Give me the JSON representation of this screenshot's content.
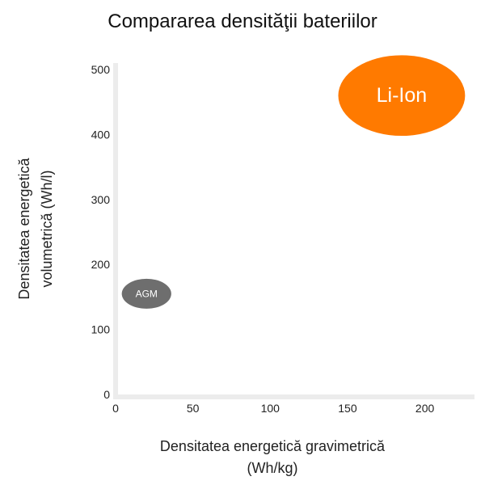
{
  "chart_data": {
    "type": "scatter",
    "title": "Compararea densităţii bateriilor",
    "xlabel": [
      "Densitatea energetică gravimetrică",
      "(Wh/kg)"
    ],
    "ylabel": [
      "Densitatea energetică",
      "volumetrică (Wh/l)"
    ],
    "xlim": [
      0,
      230
    ],
    "ylim": [
      0,
      510
    ],
    "x_ticks": [
      "0",
      "50",
      "100",
      "150",
      "200"
    ],
    "y_ticks": [
      "0",
      "100",
      "200",
      "300",
      "400",
      "500"
    ],
    "grid": false,
    "points": [
      {
        "label": "AGM",
        "x": 20,
        "y": 155,
        "x_extent": 16,
        "y_extent": 23,
        "color": "#6e6e6e",
        "text_color": "#ffffff"
      },
      {
        "label": "Li-Ion",
        "x": 185,
        "y": 460,
        "x_extent": 41,
        "y_extent": 62,
        "color": "#ff7a00",
        "text_color": "#ffffff"
      }
    ]
  }
}
